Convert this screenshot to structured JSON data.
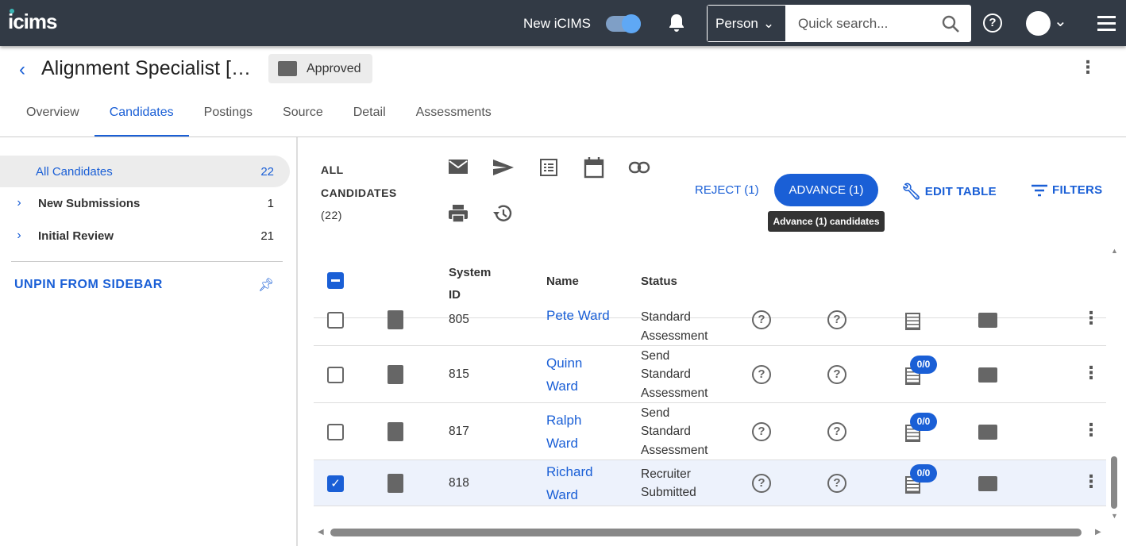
{
  "topbar": {
    "logo": "icims",
    "new_icims_label": "New iCIMS",
    "new_icims_on": true,
    "search_type": "Person",
    "search_placeholder": "Quick search...",
    "help_icon": "?"
  },
  "header": {
    "back": "‹",
    "title": "Alignment Specialist […",
    "status": "Approved",
    "more": "⋮"
  },
  "tabs": [
    {
      "label": "Overview"
    },
    {
      "label": "Candidates",
      "active": true
    },
    {
      "label": "Postings"
    },
    {
      "label": "Source"
    },
    {
      "label": "Detail"
    },
    {
      "label": "Assessments"
    }
  ],
  "sidebar": {
    "items": [
      {
        "label": "All Candidates",
        "count": "22"
      },
      {
        "label": "New Submissions",
        "count": "1"
      },
      {
        "label": "Initial Review",
        "count": "21"
      }
    ],
    "unpin": "UNPIN FROM SIDEBAR"
  },
  "toolbar": {
    "title_line1": "ALL",
    "title_line2": "CANDIDATES",
    "title_count": "(22)",
    "reject": "REJECT (1)",
    "advance": "ADVANCE (1)",
    "tooltip": "Advance (1) candidates",
    "edit_table": "EDIT TABLE",
    "filters": "FILTERS"
  },
  "table": {
    "headers": {
      "system_id_1": "System",
      "system_id_2": "ID",
      "name": "Name",
      "status": "Status"
    },
    "rows": [
      {
        "id": "805",
        "first": "Pete Ward",
        "last": "",
        "status": [
          "Standard",
          "Assessment"
        ],
        "badge": "",
        "checked": false
      },
      {
        "id": "815",
        "first": "Quinn",
        "last": "Ward",
        "status": [
          "Send",
          "Standard",
          "Assessment"
        ],
        "badge": "0/0",
        "checked": false
      },
      {
        "id": "817",
        "first": "Ralph",
        "last": "Ward",
        "status": [
          "Send",
          "Standard",
          "Assessment"
        ],
        "badge": "0/0",
        "checked": false
      },
      {
        "id": "818",
        "first": "Richard",
        "last": "Ward",
        "status": [
          "Recruiter",
          "Submitted"
        ],
        "badge": "0/0",
        "checked": true
      }
    ]
  },
  "colors": {
    "topbar": "#323a45",
    "accent": "#1a5fd6",
    "selected_row": "#edf2fc"
  }
}
